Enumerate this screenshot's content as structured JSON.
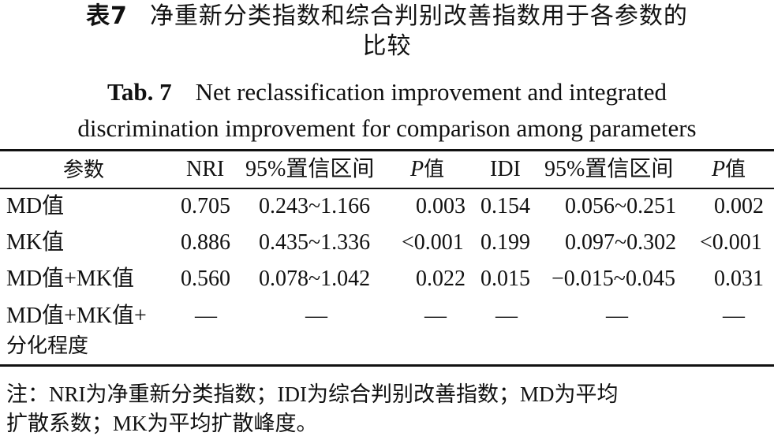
{
  "caption": {
    "cn_tab": "表7",
    "cn_line1": "净重新分类指数和综合判别改善指数用于各参数的",
    "cn_line2": "比较",
    "en_tab": "Tab. 7",
    "en_line1": "Net reclassification improvement and integrated",
    "en_line2": "discrimination improvement for comparison among parameters"
  },
  "table": {
    "headers": {
      "param": "参数",
      "nri": "NRI",
      "ci1": "95%置信区间",
      "p1_letter": "P",
      "p1_suffix": "值",
      "idi": "IDI",
      "ci2": "95%置信区间",
      "p2_letter": "P",
      "p2_suffix": "值"
    },
    "rows": [
      {
        "param": "MD值",
        "nri": "0.705",
        "ci1": "0.243~1.166",
        "p1": "0.003",
        "idi": "0.154",
        "ci2": "0.056~0.251",
        "p2": "0.002"
      },
      {
        "param": "MK值",
        "nri": "0.886",
        "ci1": "0.435~1.336",
        "p1": "<0.001",
        "idi": "0.199",
        "ci2": "0.097~0.302",
        "p2": "<0.001"
      },
      {
        "param": "MD值+MK值",
        "nri": "0.560",
        "ci1": "0.078~1.042",
        "p1": "0.022",
        "idi": "0.015",
        "ci2": "−0.015~0.045",
        "p2": "0.031"
      },
      {
        "param": "MD值+MK值+",
        "param_line2": "分化程度",
        "nri": "—",
        "ci1": "—",
        "p1": "—",
        "idi": "—",
        "ci2": "—",
        "p2": "—"
      }
    ]
  },
  "note": {
    "line1": "注：NRI为净重新分类指数；IDI为综合判别改善指数；MD为平均",
    "line2": "扩散系数；MK为平均扩散峰度。"
  }
}
